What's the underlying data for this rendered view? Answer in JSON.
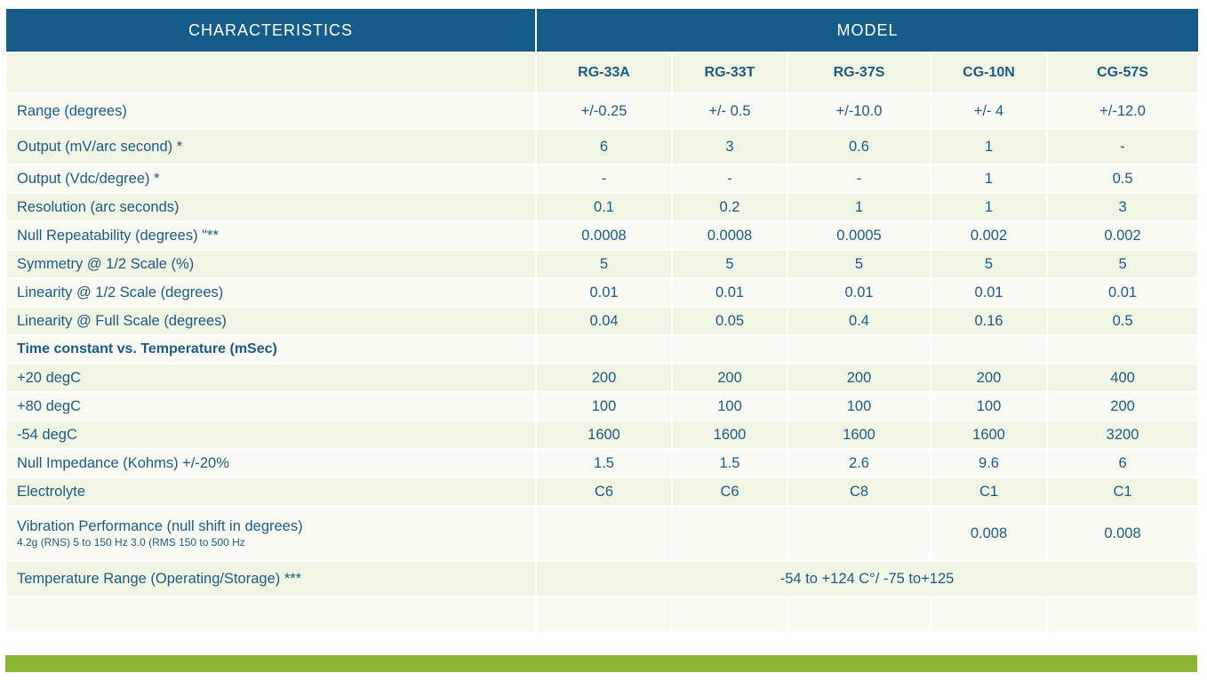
{
  "header": {
    "characteristics": "CHARACTERISTICS",
    "model": "MODEL"
  },
  "models": [
    "RG-33A",
    "RG-33T",
    "RG-37S",
    "CG-10N",
    "CG-57S"
  ],
  "rows": [
    {
      "label": "Range (degrees)",
      "values": [
        "+/-0.25",
        "+/- 0.5",
        "+/-10.0",
        "+/- 4",
        "+/-12.0"
      ]
    },
    {
      "label": "Output (mV/arc second) *",
      "values": [
        "6",
        "3",
        "0.6",
        "1",
        "-"
      ]
    },
    {
      "label": "Output (Vdc/degree) *",
      "values": [
        "-",
        "-",
        "-",
        "1",
        "0.5"
      ]
    },
    {
      "label": "Resolution (arc seconds)",
      "values": [
        "0.1",
        "0.2",
        "1",
        "1",
        "3"
      ]
    },
    {
      "label": "Null Repeatability (degrees) \"**",
      "values": [
        "0.0008",
        "0.0008",
        "0.0005",
        "0.002",
        "0.002"
      ]
    },
    {
      "label": "Symmetry @ 1/2 Scale (%)",
      "values": [
        "5",
        "5",
        "5",
        "5",
        "5"
      ]
    },
    {
      "label": "Linearity @ 1/2 Scale (degrees)",
      "values": [
        "0.01",
        "0.01",
        "0.01",
        "0.01",
        "0.01"
      ]
    },
    {
      "label": "Linearity @ Full Scale (degrees)",
      "values": [
        "0.04",
        "0.05",
        "0.4",
        "0.16",
        "0.5"
      ]
    },
    {
      "label": "Time constant vs. Temperature (mSec)",
      "values": [
        "",
        "",
        "",
        "",
        ""
      ]
    },
    {
      "label": "+20 degC",
      "values": [
        "200",
        "200",
        "200",
        "200",
        "400"
      ]
    },
    {
      "label": "+80 degC",
      "values": [
        "100",
        "100",
        "100",
        "100",
        "200"
      ]
    },
    {
      "label": "-54 degC",
      "values": [
        "1600",
        "1600",
        "1600",
        "1600",
        "3200"
      ]
    },
    {
      "label": "Null Impedance (Kohms) +/-20%",
      "values": [
        "1.5",
        "1.5",
        "2.6",
        "9.6",
        "6"
      ]
    },
    {
      "label": "Electrolyte",
      "values": [
        "C6",
        "C6",
        "C8",
        "C1",
        "C1"
      ]
    }
  ],
  "vibration": {
    "label": "Vibration Performance (null shift in degrees)",
    "sublabel": "4.2g (RNS) 5 to 150 Hz 3.0 (RMS 150 to 500 Hz",
    "values": [
      "",
      "",
      "",
      "0.008",
      "0.008"
    ]
  },
  "temperature_range": {
    "label": "Temperature Range (Operating/Storage) ***",
    "value": "-54 to +124 C°/ -75 to+125"
  },
  "colors": {
    "header_bg": "#155c88",
    "text": "#1d5a86",
    "row_light": "#f9fbf2",
    "row_dark": "#f1f5e3",
    "footer_bar": "#8cb534"
  }
}
